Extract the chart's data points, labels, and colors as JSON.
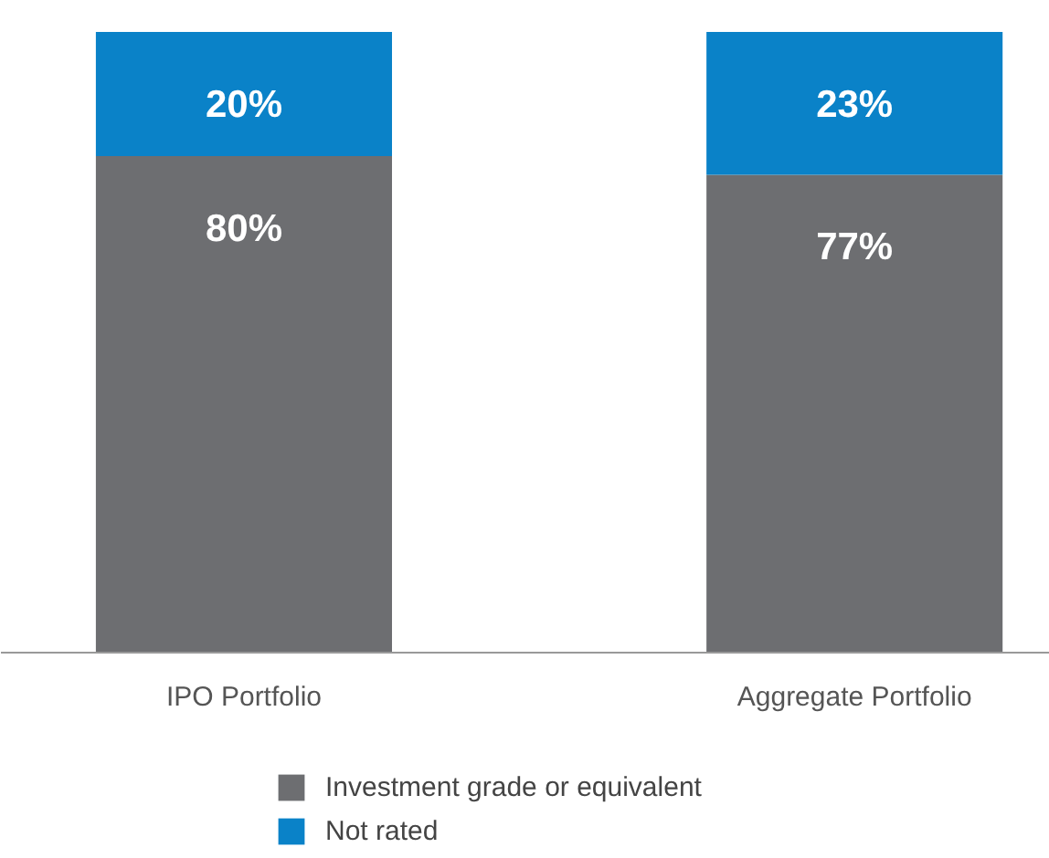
{
  "chart_data": {
    "type": "bar",
    "stacked": true,
    "categories": [
      "IPO Portfolio",
      "Aggregate Portfolio"
    ],
    "series": [
      {
        "name": "Investment grade or equivalent",
        "color": "#6d6e71",
        "values": [
          80,
          77
        ],
        "value_labels": [
          "80%",
          "77%"
        ]
      },
      {
        "name": "Not rated",
        "color": "#0a82c8",
        "values": [
          20,
          23
        ],
        "value_labels": [
          "20%",
          "23%"
        ]
      }
    ],
    "legend": "bottom"
  }
}
